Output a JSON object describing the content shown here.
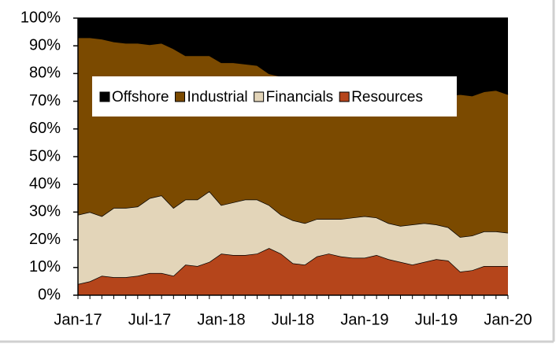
{
  "chart_data": {
    "type": "stacked_area",
    "categories": [
      "Jan-17",
      null,
      null,
      null,
      null,
      null,
      "Jul-17",
      null,
      null,
      null,
      null,
      null,
      "Jan-18",
      null,
      null,
      null,
      null,
      null,
      "Jul-18",
      null,
      null,
      null,
      null,
      null,
      "Jan-19",
      null,
      null,
      null,
      null,
      null,
      "Jul-19",
      null,
      null,
      null,
      null,
      null,
      "Jan-20"
    ],
    "series": [
      {
        "name": "Offshore",
        "color": "#000000",
        "values": [
          7,
          7,
          7.5,
          8.5,
          9,
          9,
          9.5,
          9,
          11,
          13.5,
          13.5,
          13.5,
          16,
          16,
          16.5,
          17,
          20,
          21,
          22,
          23,
          24,
          24.5,
          25,
          25.5,
          26,
          26.5,
          27,
          27,
          27.5,
          27.5,
          28,
          28,
          27.5,
          28,
          26.5,
          26,
          27.5
        ]
      },
      {
        "name": "Industrial",
        "color": "#7b4a00",
        "values": [
          64,
          63,
          64,
          60,
          59.5,
          59,
          55.5,
          55,
          57.5,
          52,
          52,
          49,
          51.5,
          50.5,
          49,
          48.5,
          47.5,
          50,
          51,
          51,
          48.5,
          48,
          47.5,
          46.5,
          45.5,
          45.5,
          47,
          48,
          47,
          46.5,
          46.5,
          47.5,
          51.5,
          50.5,
          50.5,
          51,
          50
        ]
      },
      {
        "name": "Financials",
        "color": "#e3d5b9",
        "values": [
          25,
          25,
          21.5,
          25,
          25,
          25,
          27,
          28,
          24.5,
          23.5,
          24,
          25.5,
          17.5,
          19,
          20,
          19.5,
          15.5,
          14,
          15.5,
          15,
          13.5,
          12.5,
          13.5,
          14.5,
          15,
          13.5,
          13,
          13,
          14.5,
          14,
          12.5,
          12,
          12.5,
          12.5,
          12.5,
          12.5,
          12
        ]
      },
      {
        "name": "Resources",
        "color": "#b5451b",
        "values": [
          4,
          5,
          7,
          6.5,
          6.5,
          7,
          8,
          8,
          7,
          11,
          10.5,
          12,
          15,
          14.5,
          14.5,
          15,
          17,
          15,
          11.5,
          11,
          14,
          15,
          14,
          13.5,
          13.5,
          14.5,
          13,
          12,
          11,
          12,
          13,
          12.5,
          8.5,
          9,
          10.5,
          10.5,
          10.5
        ]
      }
    ],
    "ylim": [
      0,
      100
    ],
    "yticks": [
      {
        "value": 0,
        "label": "0%"
      },
      {
        "value": 10,
        "label": "10%"
      },
      {
        "value": 20,
        "label": "20%"
      },
      {
        "value": 30,
        "label": "30%"
      },
      {
        "value": 40,
        "label": "40%"
      },
      {
        "value": 50,
        "label": "50%"
      },
      {
        "value": 60,
        "label": "60%"
      },
      {
        "value": 70,
        "label": "70%"
      },
      {
        "value": 80,
        "label": "80%"
      },
      {
        "value": 90,
        "label": "90%"
      },
      {
        "value": 100,
        "label": "100%"
      }
    ],
    "legend": "top"
  }
}
